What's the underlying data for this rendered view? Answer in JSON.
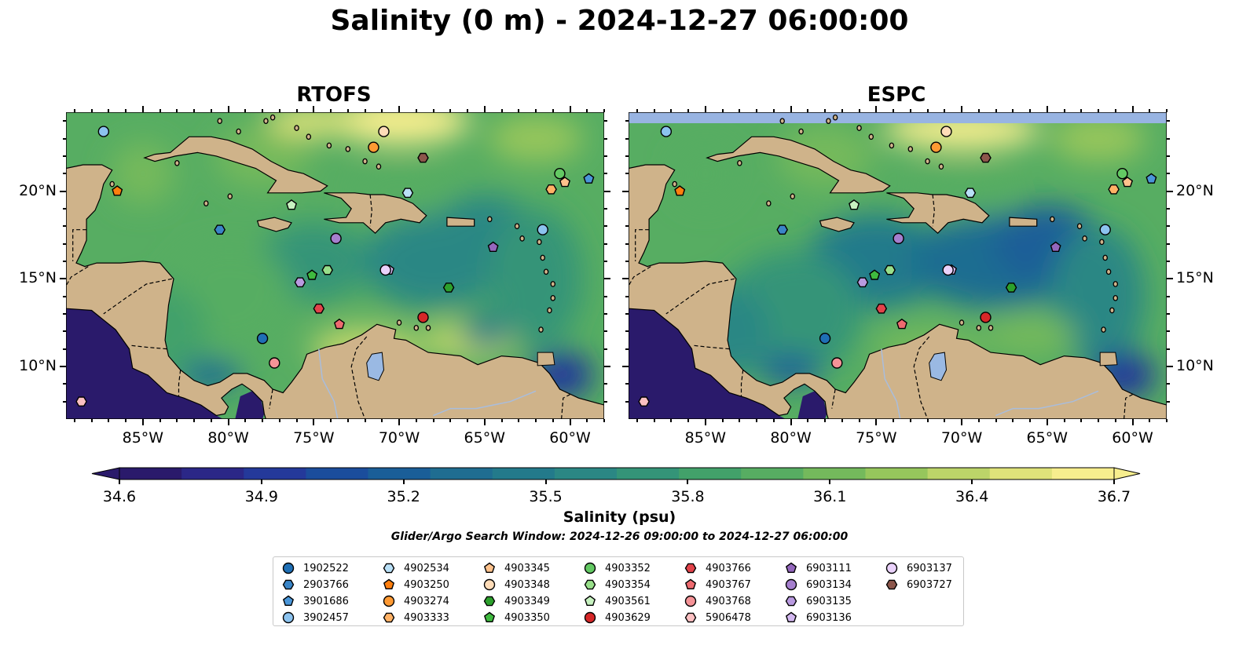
{
  "title": "Salinity (0 m) - 2024-12-27 06:00:00",
  "panels": [
    {
      "title": "RTOFS",
      "id": "rtofs"
    },
    {
      "title": "ESPC",
      "id": "espc"
    }
  ],
  "map": {
    "lon_range": [
      -89.5,
      -58.0
    ],
    "lat_range": [
      7.0,
      24.5
    ],
    "lon_ticks": [
      -85,
      -80,
      -75,
      -70,
      -65,
      -60
    ],
    "lon_tick_labels": [
      "85°W",
      "80°W",
      "75°W",
      "70°W",
      "65°W",
      "60°W"
    ],
    "lat_ticks": [
      10,
      15,
      20
    ],
    "lat_tick_labels": [
      "10°N",
      "15°N",
      "20°N"
    ]
  },
  "colorbar": {
    "label": "Salinity (psu)",
    "min": 34.6,
    "max": 36.7,
    "ticks": [
      "34.6",
      "34.9",
      "35.2",
      "35.5",
      "35.8",
      "36.1",
      "36.4",
      "36.7"
    ],
    "extend": "both",
    "colors": [
      "#2a1a6b",
      "#2b2787",
      "#24399a",
      "#1b4d9c",
      "#1a5e98",
      "#1f6d91",
      "#237a8b",
      "#2b8784",
      "#349478",
      "#42a16a",
      "#57ad62",
      "#74b95c",
      "#96c65c",
      "#bcd469",
      "#dfe37a",
      "#f7ee8e"
    ]
  },
  "search_window": "Glider/Argo Search Window: 2024-12-26 09:00:00 to 2024-12-27 06:00:00",
  "land_color": "#cfb38a",
  "lake_color": "#9ab9e3",
  "legend": [
    {
      "id": "1902522",
      "marker": "circle",
      "color": "#1f6fb5"
    },
    {
      "id": "2903766",
      "marker": "hexagon",
      "color": "#3a85c7"
    },
    {
      "id": "3901686",
      "marker": "pentagon",
      "color": "#4a96d9"
    },
    {
      "id": "3902457",
      "marker": "circle",
      "color": "#8cc3ef"
    },
    {
      "id": "4902534",
      "marker": "hexagon",
      "color": "#b9e0f7"
    },
    {
      "id": "4903250",
      "marker": "pentagon",
      "color": "#ff7f0e"
    },
    {
      "id": "4903274",
      "marker": "circle",
      "color": "#ff9a33"
    },
    {
      "id": "4903333",
      "marker": "hexagon",
      "color": "#ffb266"
    },
    {
      "id": "4903345",
      "marker": "pentagon",
      "color": "#ffc28c"
    },
    {
      "id": "4903348",
      "marker": "circle",
      "color": "#ffdcb8"
    },
    {
      "id": "4903349",
      "marker": "hexagon",
      "color": "#2ca02c"
    },
    {
      "id": "4903350",
      "marker": "pentagon",
      "color": "#3fba3f"
    },
    {
      "id": "4903352",
      "marker": "circle",
      "color": "#63c963"
    },
    {
      "id": "4903354",
      "marker": "hexagon",
      "color": "#98df8a"
    },
    {
      "id": "4903561",
      "marker": "pentagon",
      "color": "#c7f2c0"
    },
    {
      "id": "4903629",
      "marker": "circle",
      "color": "#d62728"
    },
    {
      "id": "4903766",
      "marker": "hexagon",
      "color": "#e2434a"
    },
    {
      "id": "4903767",
      "marker": "pentagon",
      "color": "#ee6a6f"
    },
    {
      "id": "4903768",
      "marker": "circle",
      "color": "#f59397"
    },
    {
      "id": "5906478",
      "marker": "hexagon",
      "color": "#fbc0c2"
    },
    {
      "id": "6903111",
      "marker": "pentagon",
      "color": "#9467bd"
    },
    {
      "id": "6903134",
      "marker": "circle",
      "color": "#a57fce"
    },
    {
      "id": "6903135",
      "marker": "hexagon",
      "color": "#b99ae0"
    },
    {
      "id": "6903136",
      "marker": "pentagon",
      "color": "#d3b8f0"
    },
    {
      "id": "6903137",
      "marker": "circle",
      "color": "#ead2fb"
    },
    {
      "id": "6903727",
      "marker": "hexagon",
      "color": "#8c564b"
    }
  ],
  "observations": [
    {
      "id": "1902522",
      "lon": -78.0,
      "lat": 11.6
    },
    {
      "id": "2903766",
      "lon": -80.5,
      "lat": 17.8
    },
    {
      "id": "3901686",
      "lon": -58.9,
      "lat": 20.7
    },
    {
      "id": "3902457",
      "lon": -61.6,
      "lat": 17.8
    },
    {
      "id": "4902534",
      "lon": -69.5,
      "lat": 19.9
    },
    {
      "id": "4903250",
      "lon": -86.5,
      "lat": 20.0
    },
    {
      "id": "4903274",
      "lon": -71.5,
      "lat": 22.5
    },
    {
      "id": "4903333",
      "lon": -61.1,
      "lat": 20.1
    },
    {
      "id": "4903345",
      "lon": -60.3,
      "lat": 20.5
    },
    {
      "id": "4903348",
      "lon": -70.9,
      "lat": 23.4
    },
    {
      "id": "4903349",
      "lon": -67.1,
      "lat": 14.5
    },
    {
      "id": "4903350",
      "lon": -75.1,
      "lat": 15.2
    },
    {
      "id": "4903352",
      "lon": -60.6,
      "lat": 21.0
    },
    {
      "id": "4903354",
      "lon": -74.2,
      "lat": 15.5
    },
    {
      "id": "4903561",
      "lon": -76.3,
      "lat": 19.2
    },
    {
      "id": "4903629",
      "lon": -68.6,
      "lat": 12.8
    },
    {
      "id": "4903766",
      "lon": -74.7,
      "lat": 13.3
    },
    {
      "id": "4903767",
      "lon": -73.5,
      "lat": 12.4
    },
    {
      "id": "4903768",
      "lon": -77.3,
      "lat": 10.2
    },
    {
      "id": "5906478",
      "lon": -88.6,
      "lat": 8.0
    },
    {
      "id": "6903111",
      "lon": -64.5,
      "lat": 16.8
    },
    {
      "id": "6903134",
      "lon": -73.7,
      "lat": 17.3
    },
    {
      "id": "6903135",
      "lon": -75.8,
      "lat": 14.8
    },
    {
      "id": "6903136",
      "lon": -70.6,
      "lat": 15.5
    },
    {
      "id": "6903137",
      "lon": -70.8,
      "lat": 15.5
    },
    {
      "id": "6903727",
      "lon": -68.6,
      "lat": 21.9
    },
    {
      "id": "3902457b",
      "lon": -87.3,
      "lat": 23.4
    }
  ]
}
